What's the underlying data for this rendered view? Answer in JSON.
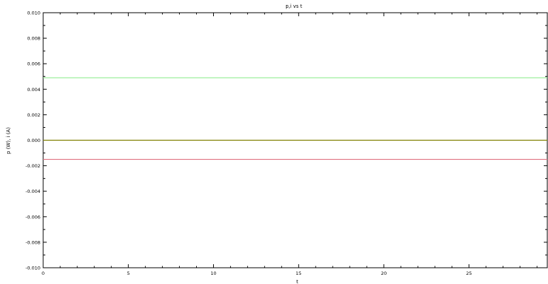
{
  "chart_data": {
    "type": "line",
    "title": "p,i vs t",
    "xlabel": "t",
    "ylabel": "p (W), i (A)",
    "xlim": [
      0,
      29.6
    ],
    "ylim": [
      -0.01,
      0.01
    ],
    "x_ticks": [
      0,
      5,
      10,
      15,
      20,
      25
    ],
    "x_tick_labels": [
      "0",
      "5",
      "10",
      "15",
      "20",
      "25"
    ],
    "y_ticks": [
      -0.01,
      -0.008,
      -0.006,
      -0.004,
      -0.002,
      0.0,
      0.002,
      0.004,
      0.006,
      0.008,
      0.01
    ],
    "y_tick_labels": [
      "-0.010",
      "-0.008",
      "-0.006",
      "-0.004",
      "-0.002",
      "0.000",
      "0.002",
      "0.004",
      "0.006",
      "0.008",
      "0.010"
    ],
    "grid": false,
    "legend": "none",
    "series": [
      {
        "color": "#90ee90",
        "x": [
          0,
          29.6
        ],
        "y": [
          0.0049,
          0.0049
        ]
      },
      {
        "color": "#808000",
        "x": [
          0,
          29.6
        ],
        "y": [
          0.0,
          0.0
        ]
      },
      {
        "color": "#e07080",
        "x": [
          0,
          29.6
        ],
        "y": [
          -0.0015,
          -0.0015
        ]
      }
    ]
  }
}
